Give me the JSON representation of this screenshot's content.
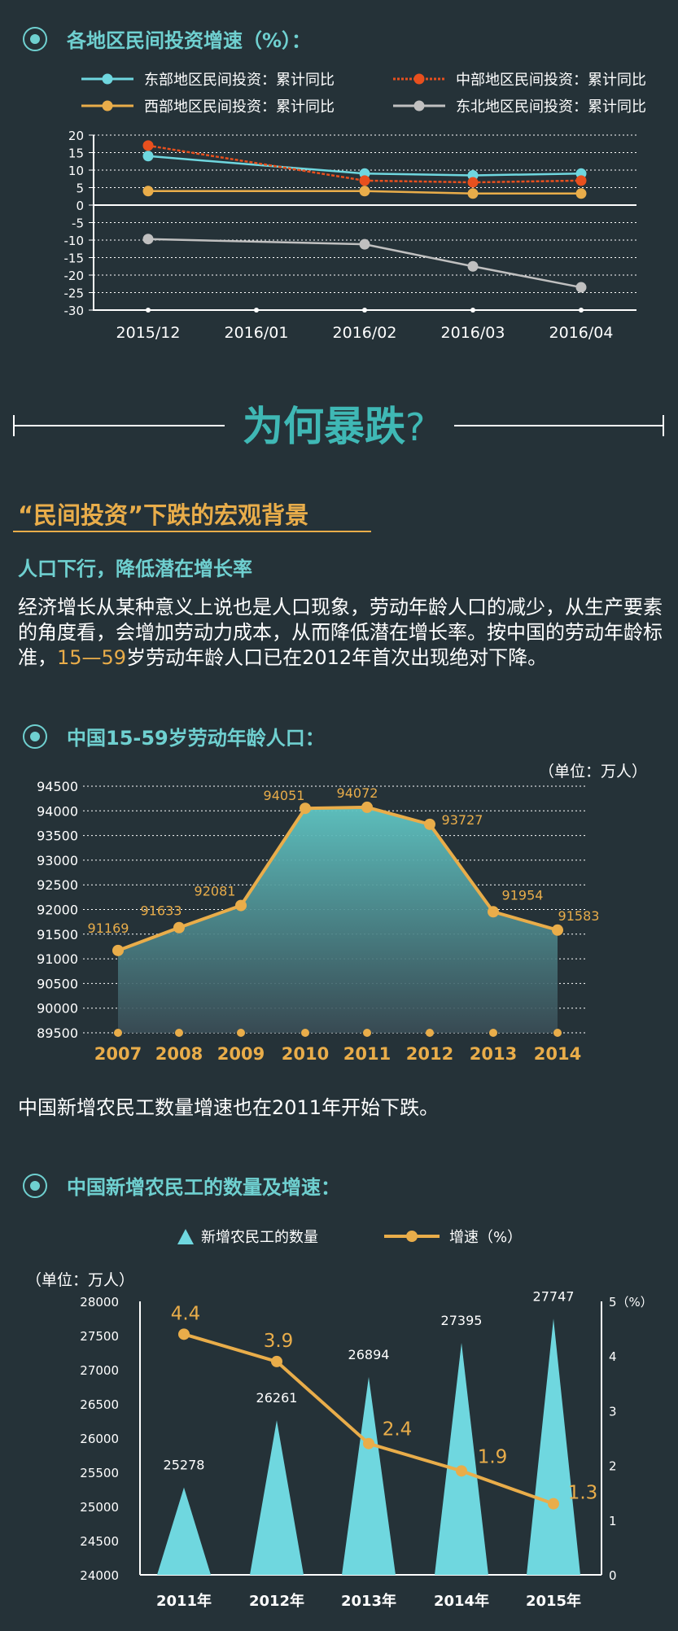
{
  "section1": {
    "title": "各地区民间投资增速（%）："
  },
  "chart_data": [
    {
      "type": "line",
      "categories": [
        "2015/12",
        "2016/01",
        "2016/02",
        "2016/03",
        "2016/04"
      ],
      "ylim": [
        -30,
        20
      ],
      "yticks": [
        20,
        15,
        10,
        5,
        0,
        -5,
        -10,
        -15,
        -20,
        -25,
        -30
      ],
      "grid": true,
      "legend": "top",
      "series": [
        {
          "name": "东部地区民间投资：累计同比",
          "color": "#6fd7df",
          "x": [
            "2015/12",
            "2016/02",
            "2016/03",
            "2016/04"
          ],
          "values": [
            14,
            9,
            8.5,
            9
          ]
        },
        {
          "name": "中部地区民间投资：累计同比",
          "color": "#e8501e",
          "dashed": true,
          "x": [
            "2015/12",
            "2016/02",
            "2016/03",
            "2016/04"
          ],
          "values": [
            17,
            7,
            6.5,
            7
          ]
        },
        {
          "name": "西部地区民间投资：累计同比",
          "color": "#e9ad4a",
          "x": [
            "2015/12",
            "2016/02",
            "2016/03",
            "2016/04"
          ],
          "values": [
            4,
            4,
            3.3,
            3.3
          ]
        },
        {
          "name": "东北地区民间投资：累计同比",
          "color": "#c0c0c0",
          "x": [
            "2015/12",
            "2016/02",
            "2016/03",
            "2016/04"
          ],
          "values": [
            -9.7,
            -11.2,
            -17.5,
            -23.5
          ]
        }
      ]
    },
    {
      "type": "area",
      "unit_label": "（单位：万人）",
      "categories": [
        "2007",
        "2008",
        "2009",
        "2010",
        "2011",
        "2012",
        "2013",
        "2014"
      ],
      "values": [
        91169,
        91633,
        92081,
        94051,
        94072,
        93727,
        91954,
        91583
      ],
      "labels": [
        "91169",
        "91633",
        "92081",
        "94051",
        "94072",
        "93727",
        "91954",
        "91583"
      ],
      "ylim": [
        89500,
        94500
      ],
      "yticks": [
        94500,
        94000,
        93500,
        93000,
        92500,
        92000,
        91500,
        91000,
        90500,
        90000,
        89500
      ],
      "grid": true
    },
    {
      "type": "bar",
      "unit_label": "（单位：万人）",
      "categories": [
        "2011年",
        "2012年",
        "2013年",
        "2014年",
        "2015年"
      ],
      "series": [
        {
          "name": "新增农民工的数量",
          "type": "bar",
          "values": [
            25278,
            26261,
            26894,
            27395,
            27747
          ],
          "labels": [
            "25278",
            "26261",
            "26894",
            "27395",
            "27747"
          ]
        },
        {
          "name": "增速（%）",
          "type": "line",
          "axis": "right",
          "values": [
            4.4,
            3.9,
            2.4,
            1.9,
            1.3
          ],
          "labels": [
            "4.4",
            "3.9",
            "2.4",
            "1.9",
            "1.3"
          ]
        }
      ],
      "ylim": [
        24000,
        28000
      ],
      "yticks": [
        28000,
        27500,
        27000,
        26500,
        26000,
        25500,
        25000,
        24500,
        24000
      ],
      "y2lim": [
        0,
        5
      ],
      "y2ticks": [
        "5（%）",
        "4",
        "3",
        "2",
        "1",
        "0"
      ],
      "legend": "top"
    }
  ],
  "banner": {
    "title": "为何暴跌",
    "mark": "?"
  },
  "background": {
    "title": "“民间投资”下跌的宏观背景",
    "subtitle": "人口下行，降低潜在增长率",
    "para_a": "经济增长从某种意义上说也是人口现象，劳动年龄人口的减少，从生产要素的角度看，会增加劳动力成本，从而降低潜在增长率。按中国的劳动年龄标准，",
    "para_highlight": "15—59",
    "para_b": "岁劳动年龄人口已在2012年首次出现绝对下降。"
  },
  "section2": {
    "title": "中国15-59岁劳动年龄人口："
  },
  "para2": "中国新增农民工数量增速也在2011年开始下跌。",
  "section3": {
    "title": "中国新增农民工的数量及增速："
  },
  "colors": {
    "teal": "#6fd0d0",
    "orange": "#e9ad4a",
    "background": "#253238"
  }
}
